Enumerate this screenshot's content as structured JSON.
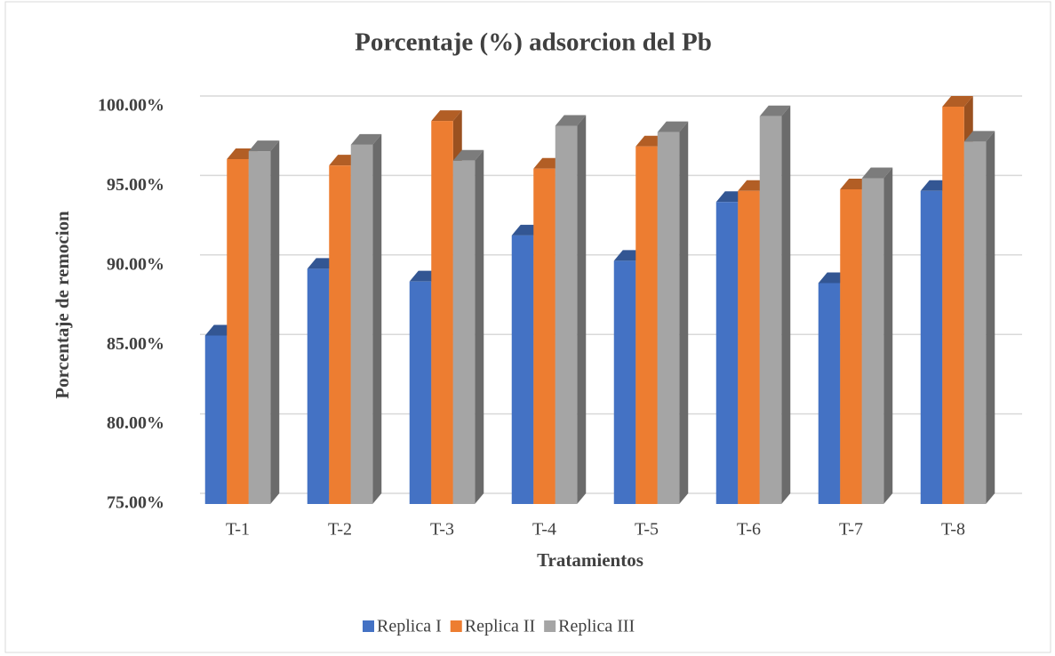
{
  "chart_data": {
    "type": "bar3d",
    "title": "Porcentaje (%) adsorcion del Pb",
    "x_label": "Tratamientos",
    "y_label": "Porcentaje de remocion",
    "categories": [
      "T-1",
      "T-2",
      "T-3",
      "T-4",
      "T-5",
      "T-6",
      "T-7",
      "T-8"
    ],
    "series": [
      {
        "name": "Replica I",
        "color": "#4472c4",
        "values": [
          85.6,
          89.8,
          89.0,
          91.9,
          90.3,
          94.0,
          88.9,
          94.7
        ]
      },
      {
        "name": "Replica II",
        "color": "#ed7d31",
        "values": [
          96.7,
          96.3,
          99.1,
          96.1,
          97.5,
          94.7,
          94.8,
          100.0
        ]
      },
      {
        "name": "Replica III",
        "color": "#a5a5a5",
        "values": [
          97.2,
          97.6,
          96.6,
          98.8,
          98.4,
          99.4,
          95.5,
          97.8
        ]
      }
    ],
    "ylim": [
      75,
      100
    ],
    "yticks": [
      {
        "value": 75,
        "label": "75.00%"
      },
      {
        "value": 80,
        "label": "80.00%"
      },
      {
        "value": 85,
        "label": "85.00%"
      },
      {
        "value": 90,
        "label": "90.00%"
      },
      {
        "value": 95,
        "label": "95.00%"
      },
      {
        "value": 100,
        "label": "100.00%"
      }
    ],
    "grid": true,
    "legend": "bottom"
  }
}
